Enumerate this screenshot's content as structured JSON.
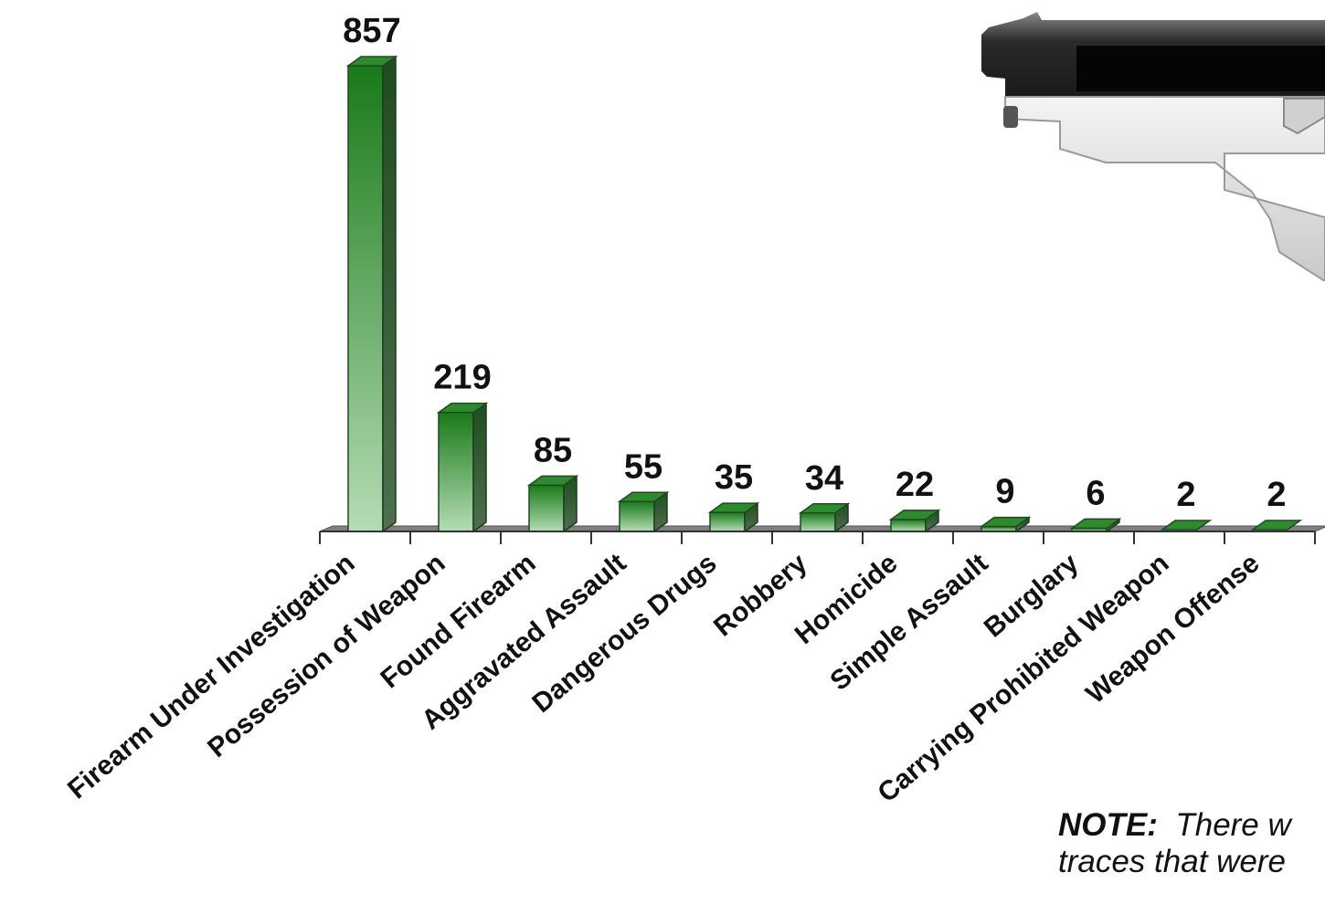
{
  "chart_data": {
    "type": "bar",
    "categories": [
      "Firearm Under Investigation",
      "Possession of Weapon",
      "Found Firearm",
      "Aggravated Assault",
      "Dangerous Drugs",
      "Robbery",
      "Homicide",
      "Simple Assault",
      "Burglary",
      "Carrying Prohibited Weapon",
      "Weapon Offense"
    ],
    "values": [
      857,
      219,
      85,
      55,
      35,
      34,
      22,
      9,
      6,
      2,
      2
    ],
    "title": "",
    "xlabel": "",
    "ylabel": "",
    "ylim": [
      0,
      857
    ],
    "grid": false,
    "legend": "none"
  },
  "colors": {
    "bar_top": "#1a7a1a",
    "bar_bottom": "#b5dcb5",
    "bar_side": "#2e5e2e",
    "floor": "#808080"
  },
  "note": {
    "label": "NOTE:",
    "line1": "There w",
    "line2": "traces that were"
  },
  "image": {
    "icon": "handgun-icon"
  }
}
